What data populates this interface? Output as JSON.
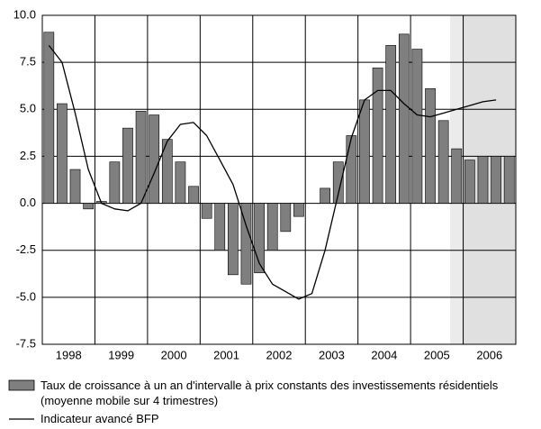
{
  "chart_data": {
    "type": "bar_line",
    "categories": [
      "1998",
      "1999",
      "2000",
      "2001",
      "2002",
      "2003",
      "2004",
      "2005",
      "2006"
    ],
    "series": [
      {
        "name": "Taux de croissance  à un an d'intervalle à prix constants des investissements résidentiels (moyenne mobile sur 4 trimestres)",
        "kind": "bar",
        "color": "#7f7f7f",
        "values": [
          [
            9.1,
            5.3,
            1.8,
            -0.3
          ],
          [
            0.1,
            2.2,
            4.0,
            4.9
          ],
          [
            4.7,
            3.4,
            2.2,
            0.9
          ],
          [
            -0.8,
            -2.5,
            -3.8,
            -4.3
          ],
          [
            -3.7,
            -2.5,
            -1.5,
            -0.7
          ],
          [
            0.0,
            0.8,
            2.2,
            3.6
          ],
          [
            5.5,
            7.2,
            8.4,
            9.0
          ],
          [
            8.2,
            6.1,
            4.4,
            2.9
          ],
          [
            2.3,
            2.5,
            2.5,
            2.5
          ]
        ]
      },
      {
        "name": "Indicateur avancé BFP",
        "kind": "line",
        "color": "#000000",
        "values": [
          [
            8.4,
            7.5,
            4.8,
            1.8
          ],
          [
            0.0,
            -0.3,
            -0.4,
            0.0
          ],
          [
            1.6,
            3.3,
            4.2,
            4.3
          ],
          [
            3.6,
            2.3,
            1.0,
            -1.2
          ],
          [
            -3.2,
            -4.3,
            -4.7,
            -5.1
          ],
          [
            -4.8,
            -2.5,
            0.5,
            3.5
          ],
          [
            5.5,
            6.0,
            6.0,
            5.3
          ],
          [
            4.7,
            4.6,
            4.8,
            5.0
          ],
          [
            5.2,
            5.4,
            5.5,
            null
          ]
        ]
      }
    ],
    "ylim": [
      -7.5,
      10.0
    ],
    "yticks": [
      {
        "value": 10,
        "label": "10.0"
      },
      {
        "value": 7.5,
        "label": "7.5"
      },
      {
        "value": 5,
        "label": "5.0"
      },
      {
        "value": 2.5,
        "label": "2.5"
      },
      {
        "value": 0,
        "label": "0.0"
      },
      {
        "value": -2.5,
        "label": "-2.5"
      },
      {
        "value": -5,
        "label": "-5.0"
      },
      {
        "value": -7.5,
        "label": "-7.5"
      }
    ],
    "grid": true
  }
}
